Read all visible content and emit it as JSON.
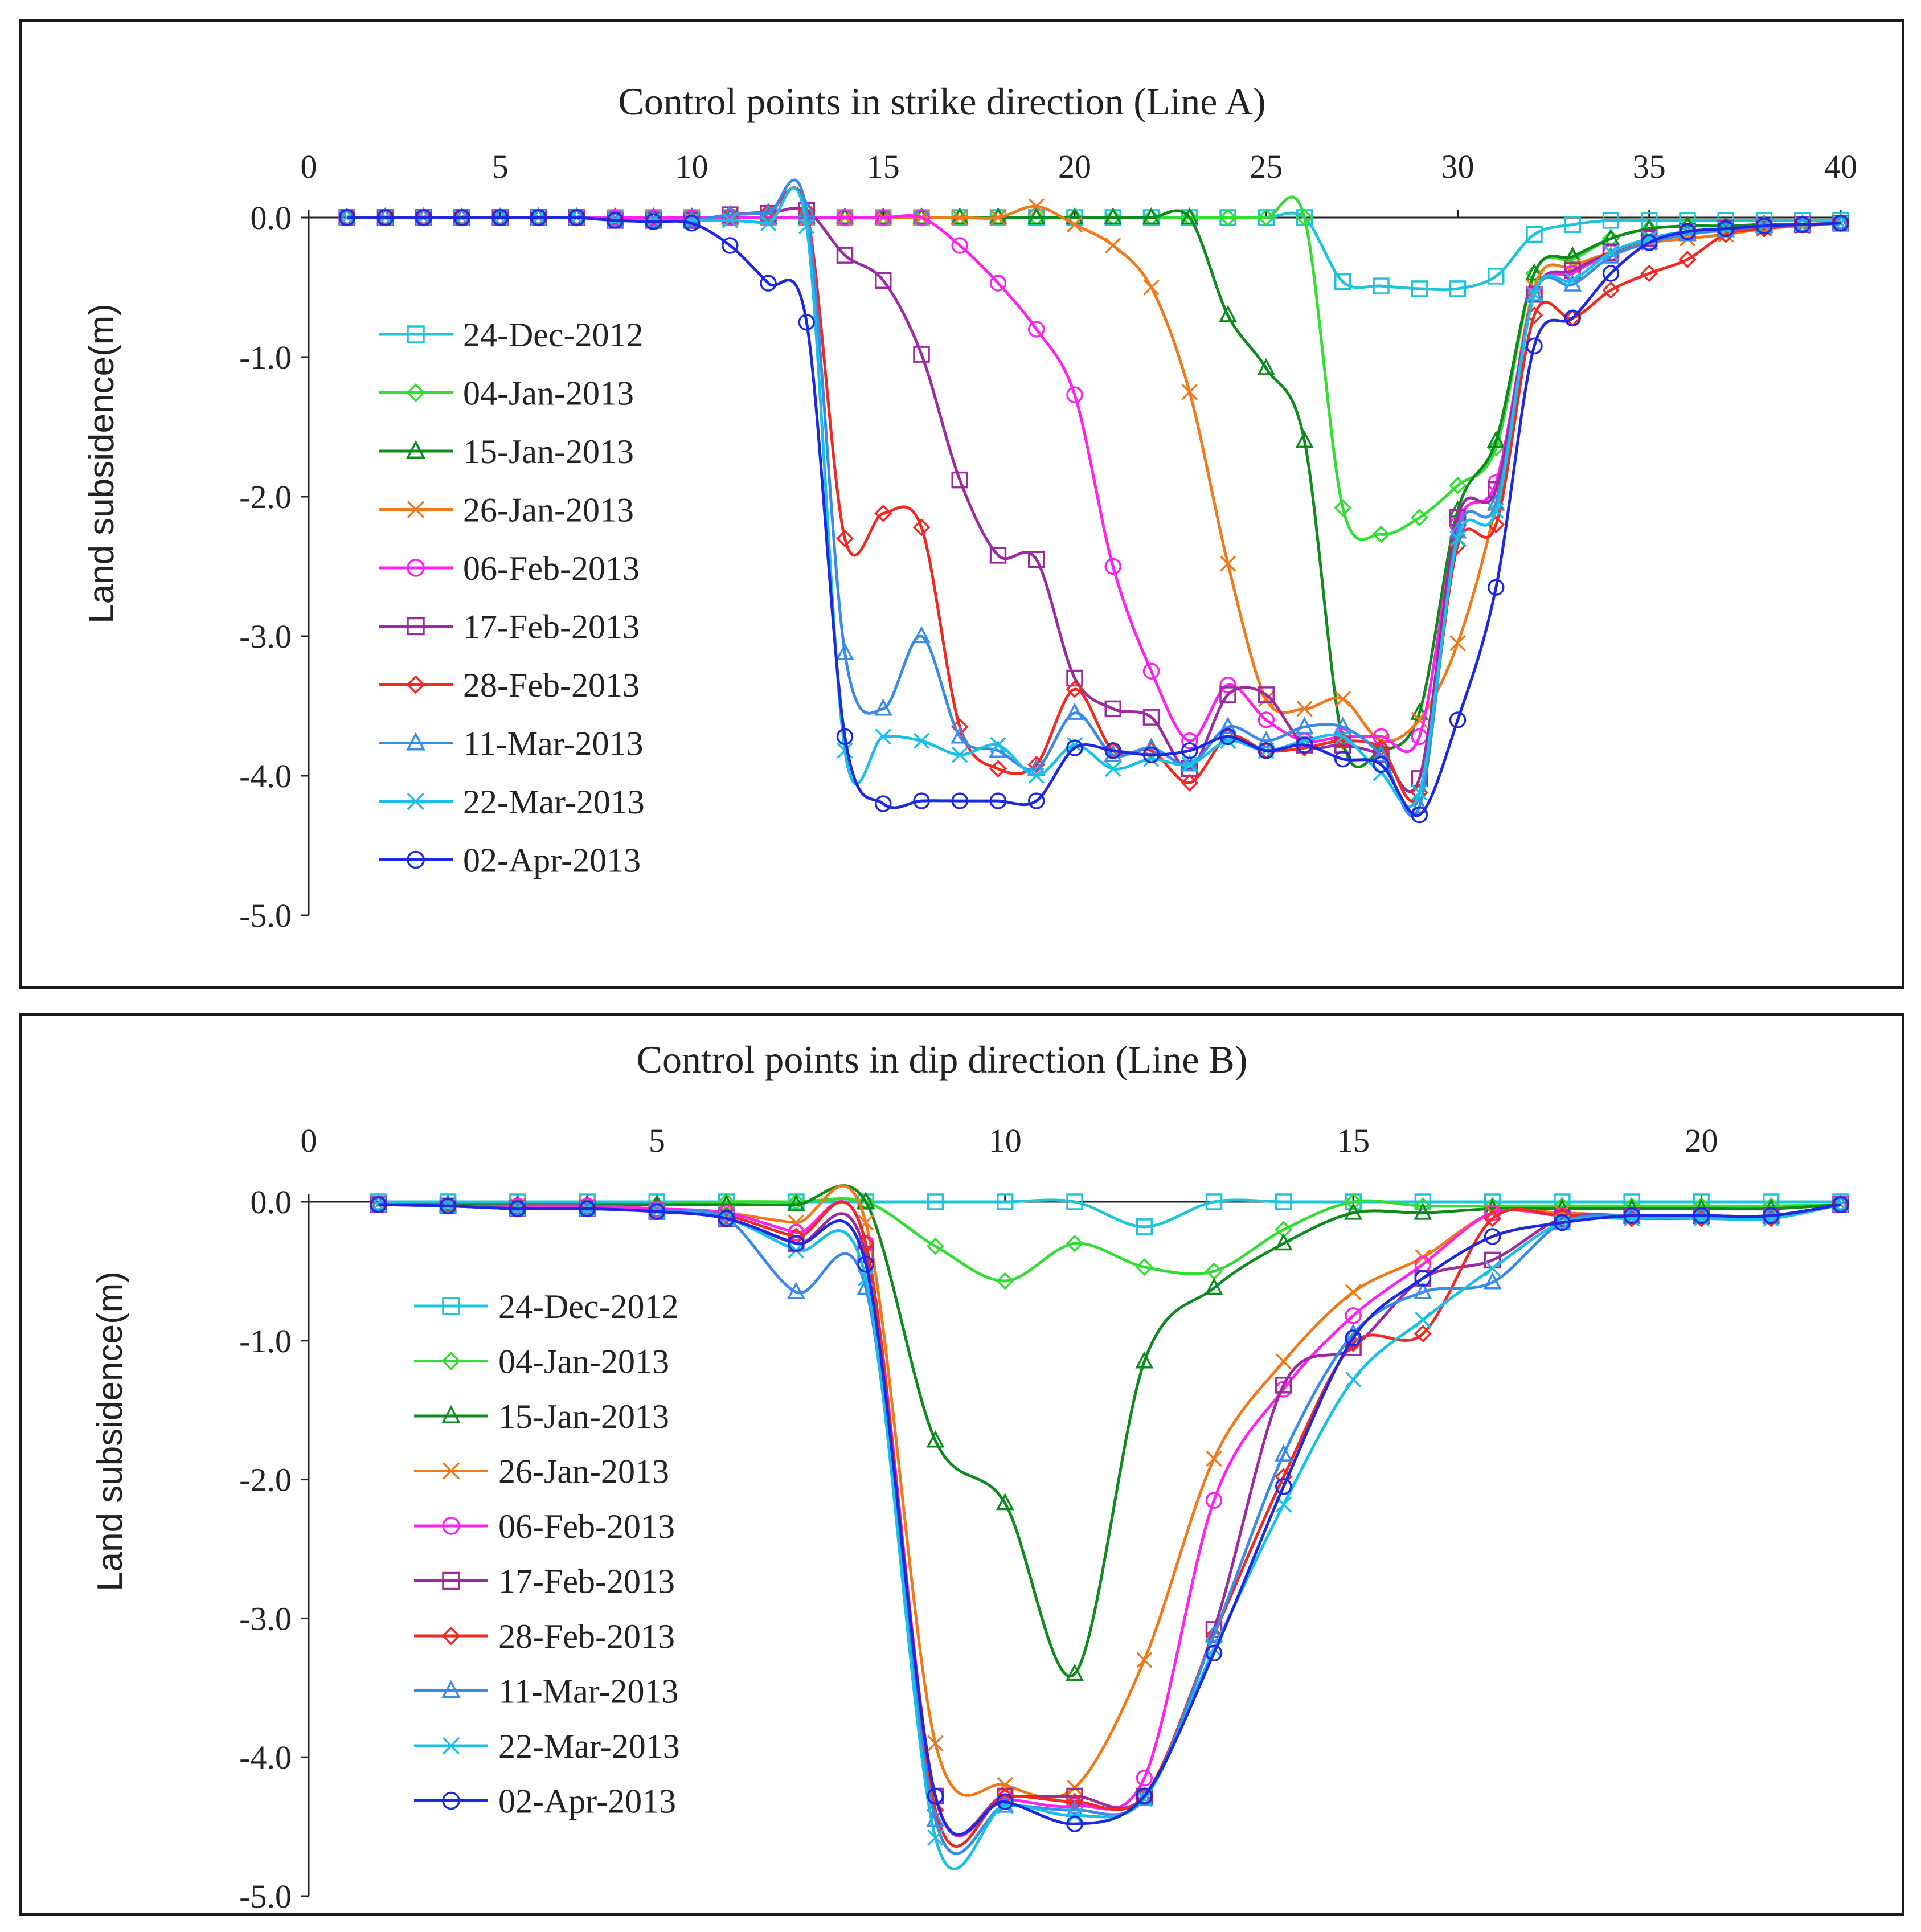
{
  "chart_data": [
    {
      "type": "line",
      "title": "Control points in strike direction (Line A)",
      "xlabel": "Control points in strike direction (Line A)",
      "ylabel": "Land subsidence(m)",
      "xlim": [
        0,
        40
      ],
      "ylim": [
        -5.0,
        0.0
      ],
      "xticks": [
        0,
        5,
        10,
        15,
        20,
        25,
        30,
        35,
        40
      ],
      "yticks": [
        0.0,
        -1.0,
        -2.0,
        -3.0,
        -4.0,
        -5.0
      ],
      "ytick_labels": [
        "0.0",
        "-1.0",
        "-2.0",
        "-3.0",
        "-4.0",
        "-5.0"
      ],
      "x_axis_position": "top",
      "legend_position": "left",
      "x": [
        1,
        2,
        3,
        4,
        5,
        6,
        7,
        8,
        9,
        10,
        11,
        12,
        13,
        14,
        15,
        16,
        17,
        18,
        19,
        20,
        21,
        22,
        23,
        24,
        25,
        26,
        27,
        28,
        29,
        30,
        31,
        32,
        33,
        34,
        35,
        36,
        37,
        38,
        39,
        40
      ],
      "series": [
        {
          "name": "24-Dec-2012",
          "color": "#1fc4d8",
          "marker": "square",
          "values": [
            0,
            0,
            0,
            0,
            0,
            0,
            0,
            0,
            0,
            0,
            0,
            0,
            0,
            0,
            0,
            0,
            0,
            0,
            0,
            0,
            0,
            0,
            0,
            0,
            0,
            0,
            -0.46,
            -0.49,
            -0.51,
            -0.51,
            -0.42,
            -0.12,
            -0.05,
            -0.02,
            -0.02,
            -0.02,
            -0.02,
            -0.02,
            -0.02,
            -0.02
          ]
        },
        {
          "name": "04-Jan-2013",
          "color": "#33dd33",
          "marker": "diamond",
          "values": [
            0,
            0,
            0,
            0,
            0,
            0,
            0,
            0,
            0,
            0,
            0,
            0,
            0,
            0,
            0,
            0,
            0,
            0,
            0,
            0,
            0,
            0,
            0,
            0,
            0,
            0,
            -2.08,
            -2.27,
            -2.15,
            -1.92,
            -1.65,
            -0.4,
            -0.3,
            -0.15,
            -0.08,
            -0.06,
            -0.06,
            -0.05,
            -0.05,
            -0.04
          ]
        },
        {
          "name": "15-Jan-2013",
          "color": "#0f8a1e",
          "marker": "triangle",
          "values": [
            0,
            0,
            0,
            0,
            0,
            0,
            0,
            0,
            0,
            0,
            0,
            0,
            0,
            0,
            0,
            0,
            0,
            0,
            0,
            0,
            0,
            0,
            0,
            -0.7,
            -1.08,
            -1.6,
            -3.75,
            -3.82,
            -3.55,
            -2.1,
            -1.6,
            -0.4,
            -0.28,
            -0.15,
            -0.08,
            -0.06,
            -0.06,
            -0.05,
            -0.05,
            -0.04
          ]
        },
        {
          "name": "26-Jan-2013",
          "color": "#f07a1a",
          "marker": "x",
          "values": [
            0,
            0,
            0,
            0,
            0,
            0,
            0,
            0,
            0,
            0,
            0,
            0,
            0,
            0,
            0,
            0,
            0,
            0,
            0.08,
            -0.05,
            -0.2,
            -0.5,
            -1.25,
            -2.48,
            -3.45,
            -3.52,
            -3.45,
            -3.75,
            -3.6,
            -3.05,
            -2.05,
            -0.5,
            -0.35,
            -0.25,
            -0.18,
            -0.15,
            -0.12,
            -0.08,
            -0.06,
            -0.04
          ]
        },
        {
          "name": "06-Feb-2013",
          "color": "#ff22ee",
          "marker": "circle",
          "values": [
            0,
            0,
            0,
            0,
            0,
            0,
            0,
            0,
            0,
            0,
            0,
            0,
            0,
            0,
            0,
            0,
            -0.2,
            -0.47,
            -0.8,
            -1.27,
            -2.5,
            -3.25,
            -3.75,
            -3.35,
            -3.6,
            -3.75,
            -3.72,
            -3.72,
            -3.72,
            -2.2,
            -1.9,
            -0.55,
            -0.4,
            -0.25,
            -0.15,
            -0.1,
            -0.08,
            -0.06,
            -0.05,
            -0.04
          ]
        },
        {
          "name": "17-Feb-2013",
          "color": "#9c2aa0",
          "marker": "square",
          "values": [
            0,
            0,
            0,
            0,
            0,
            0,
            0,
            -0.02,
            -0.02,
            -0.02,
            0.02,
            0.03,
            0.05,
            -0.27,
            -0.45,
            -0.98,
            -1.88,
            -2.42,
            -2.45,
            -3.3,
            -3.52,
            -3.58,
            -3.95,
            -3.42,
            -3.42,
            -3.78,
            -3.78,
            -3.85,
            -4.02,
            -2.15,
            -1.95,
            -0.55,
            -0.38,
            -0.25,
            -0.15,
            -0.1,
            -0.08,
            -0.06,
            -0.05,
            -0.04
          ]
        },
        {
          "name": "28-Feb-2013",
          "color": "#ee2a22",
          "marker": "diamond",
          "values": [
            0,
            0,
            0,
            0,
            0,
            0,
            0,
            -0.02,
            -0.02,
            -0.02,
            0.02,
            0.04,
            0.05,
            -2.3,
            -2.12,
            -2.22,
            -3.65,
            -3.95,
            -3.92,
            -3.38,
            -3.82,
            -3.82,
            -4.05,
            -3.72,
            -3.82,
            -3.8,
            -3.75,
            -3.8,
            -4.12,
            -2.35,
            -2.2,
            -0.7,
            -0.72,
            -0.52,
            -0.4,
            -0.3,
            -0.12,
            -0.08,
            -0.05,
            -0.04
          ]
        },
        {
          "name": "11-Mar-2013",
          "color": "#3a8ae8",
          "marker": "triangle",
          "values": [
            0,
            0,
            0,
            0,
            0,
            0,
            0,
            -0.02,
            -0.02,
            -0.02,
            0.02,
            0.03,
            0.05,
            -3.12,
            -3.52,
            -3,
            -3.72,
            -3.82,
            -3.95,
            -3.55,
            -3.85,
            -3.8,
            -3.92,
            -3.65,
            -3.75,
            -3.65,
            -3.65,
            -3.85,
            -4.22,
            -2.25,
            -2.05,
            -0.55,
            -0.48,
            -0.28,
            -0.18,
            -0.12,
            -0.09,
            -0.06,
            -0.05,
            -0.04
          ]
        },
        {
          "name": "22-Mar-2013",
          "color": "#18c0e6",
          "marker": "x",
          "values": [
            0,
            0,
            0,
            0,
            0,
            0,
            0,
            -0.02,
            -0.02,
            -0.02,
            -0.02,
            -0.04,
            -0.06,
            -3.82,
            -3.72,
            -3.75,
            -3.85,
            -3.78,
            -4,
            -3.78,
            -3.95,
            -3.88,
            -3.92,
            -3.75,
            -3.82,
            -3.75,
            -3.72,
            -3.98,
            -4.12,
            -2.3,
            -2.1,
            -0.55,
            -0.45,
            -0.25,
            -0.15,
            -0.1,
            -0.08,
            -0.06,
            -0.05,
            -0.04
          ]
        },
        {
          "name": "02-Apr-2013",
          "color": "#1e28e0",
          "marker": "circle",
          "values": [
            0,
            0,
            0,
            0,
            0,
            0,
            0,
            -0.02,
            -0.03,
            -0.04,
            -0.2,
            -0.47,
            -0.75,
            -3.72,
            -4.2,
            -4.18,
            -4.18,
            -4.18,
            -4.18,
            -3.8,
            -3.82,
            -3.85,
            -3.82,
            -3.72,
            -3.82,
            -3.78,
            -3.88,
            -3.92,
            -4.28,
            -3.6,
            -2.65,
            -0.92,
            -0.72,
            -0.4,
            -0.18,
            -0.1,
            -0.08,
            -0.06,
            -0.05,
            -0.04
          ]
        }
      ]
    },
    {
      "type": "line",
      "title": "Control points in dip direction (Line B)",
      "xlabel": "Control points in dip direction (Line B)",
      "ylabel": "Land subsidence(m)",
      "xlim": [
        0,
        22
      ],
      "ylim": [
        -5.0,
        0.0
      ],
      "xticks": [
        0,
        5,
        10,
        15,
        20
      ],
      "yticks": [
        0.0,
        -1.0,
        -2.0,
        -3.0,
        -4.0,
        -5.0
      ],
      "ytick_labels": [
        "0.0",
        "-1.0",
        "-2.0",
        "-3.0",
        "-4.0",
        "-5.0"
      ],
      "x_axis_position": "top",
      "legend_position": "left",
      "x": [
        1,
        2,
        3,
        4,
        5,
        6,
        7,
        8,
        9,
        10,
        11,
        12,
        13,
        14,
        15,
        16,
        17,
        18,
        19,
        20,
        21,
        22
      ],
      "series": [
        {
          "name": "24-Dec-2012",
          "color": "#1fc4d8",
          "marker": "square",
          "values": [
            0,
            0,
            0,
            0,
            0,
            0,
            0,
            0,
            0,
            0,
            0,
            -0.18,
            0,
            0,
            0,
            0,
            0,
            0,
            0,
            0,
            0,
            0
          ]
        },
        {
          "name": "04-Jan-2013",
          "color": "#33dd33",
          "marker": "diamond",
          "values": [
            -0.02,
            -0.02,
            -0.02,
            -0.02,
            -0.02,
            0,
            0,
            0,
            -0.32,
            -0.57,
            -0.3,
            -0.47,
            -0.5,
            -0.2,
            0,
            -0.03,
            -0.03,
            -0.03,
            -0.03,
            -0.03,
            -0.03,
            -0.02
          ]
        },
        {
          "name": "15-Jan-2013",
          "color": "#0f8a1e",
          "marker": "triangle",
          "values": [
            -0.02,
            -0.02,
            -0.02,
            -0.02,
            -0.02,
            -0.02,
            -0.02,
            0,
            -1.72,
            -2.17,
            -3.4,
            -1.15,
            -0.62,
            -0.3,
            -0.08,
            -0.08,
            -0.05,
            -0.05,
            -0.05,
            -0.05,
            -0.05,
            -0.02
          ]
        },
        {
          "name": "26-Jan-2013",
          "color": "#f07a1a",
          "marker": "x",
          "values": [
            -0.02,
            -0.03,
            -0.03,
            -0.03,
            -0.05,
            -0.08,
            -0.15,
            -0.15,
            -3.9,
            -4.2,
            -4.22,
            -3.3,
            -1.85,
            -1.15,
            -0.65,
            -0.4,
            -0.08,
            -0.08,
            -0.1,
            -0.1,
            -0.1,
            -0.02
          ]
        },
        {
          "name": "06-Feb-2013",
          "color": "#ff22ee",
          "marker": "circle",
          "values": [
            -0.02,
            -0.03,
            -0.03,
            -0.03,
            -0.05,
            -0.08,
            -0.22,
            -0.3,
            -4.28,
            -4.3,
            -4.35,
            -4.15,
            -2.15,
            -1.35,
            -0.82,
            -0.45,
            -0.08,
            -0.1,
            -0.1,
            -0.1,
            -0.1,
            -0.02
          ]
        },
        {
          "name": "17-Feb-2013",
          "color": "#9c2aa0",
          "marker": "square",
          "values": [
            -0.02,
            -0.03,
            -0.05,
            -0.05,
            -0.07,
            -0.12,
            -0.3,
            -0.38,
            -4.28,
            -4.28,
            -4.28,
            -4.28,
            -3.08,
            -1.32,
            -1.05,
            -0.55,
            -0.42,
            -0.12,
            -0.1,
            -0.1,
            -0.1,
            -0.02
          ]
        },
        {
          "name": "28-Feb-2013",
          "color": "#ee2a22",
          "marker": "diamond",
          "values": [
            -0.02,
            -0.03,
            -0.05,
            -0.05,
            -0.07,
            -0.1,
            -0.25,
            -0.3,
            -4.38,
            -4.28,
            -4.32,
            -4.28,
            -3.12,
            -1.98,
            -1.02,
            -0.95,
            -0.12,
            -0.1,
            -0.12,
            -0.12,
            -0.12,
            -0.02
          ]
        },
        {
          "name": "11-Mar-2013",
          "color": "#3a8ae8",
          "marker": "triangle",
          "values": [
            -0.02,
            -0.03,
            -0.05,
            -0.05,
            -0.07,
            -0.12,
            -0.65,
            -0.62,
            -4.45,
            -4.35,
            -4.38,
            -4.3,
            -3.12,
            -1.82,
            -0.95,
            -0.65,
            -0.58,
            -0.15,
            -0.1,
            -0.1,
            -0.1,
            -0.02
          ]
        },
        {
          "name": "22-Mar-2013",
          "color": "#18c0e6",
          "marker": "x",
          "values": [
            -0.02,
            -0.03,
            -0.05,
            -0.05,
            -0.07,
            -0.12,
            -0.35,
            -0.55,
            -4.58,
            -4.35,
            -4.42,
            -4.3,
            -3.22,
            -2.18,
            -1.28,
            -0.85,
            -0.48,
            -0.15,
            -0.12,
            -0.12,
            -0.12,
            -0.02
          ]
        },
        {
          "name": "02-Apr-2013",
          "color": "#1e28e0",
          "marker": "circle",
          "values": [
            -0.02,
            -0.03,
            -0.05,
            -0.05,
            -0.07,
            -0.12,
            -0.3,
            -0.45,
            -4.28,
            -4.32,
            -4.48,
            -4.28,
            -3.25,
            -2.05,
            -0.98,
            -0.55,
            -0.25,
            -0.15,
            -0.1,
            -0.1,
            -0.1,
            -0.02
          ]
        }
      ]
    }
  ]
}
